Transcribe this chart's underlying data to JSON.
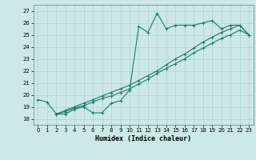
{
  "xlabel": "Humidex (Indice chaleur)",
  "xlim": [
    -0.5,
    23.5
  ],
  "ylim": [
    17.5,
    27.5
  ],
  "yticks": [
    18,
    19,
    20,
    21,
    22,
    23,
    24,
    25,
    26,
    27
  ],
  "xticks": [
    0,
    1,
    2,
    3,
    4,
    5,
    6,
    7,
    8,
    9,
    10,
    11,
    12,
    13,
    14,
    15,
    16,
    17,
    18,
    19,
    20,
    21,
    22,
    23
  ],
  "bg_color": "#cde8e8",
  "line_color": "#1a7a6a",
  "grid_color": "#aad0d0",
  "line1_x": [
    0,
    1,
    2,
    3,
    4,
    5,
    6,
    7,
    8,
    9,
    10,
    11,
    12,
    13,
    14,
    15,
    16,
    17,
    18,
    19,
    20,
    21,
    22,
    23
  ],
  "line1_y": [
    19.6,
    19.4,
    18.4,
    18.4,
    18.8,
    19.0,
    18.5,
    18.5,
    19.3,
    19.5,
    20.4,
    25.7,
    25.2,
    26.8,
    25.5,
    25.8,
    25.8,
    25.8,
    26.0,
    26.2,
    25.5,
    25.8,
    25.8,
    25.0
  ],
  "line2_x": [
    2,
    3,
    4,
    5,
    6,
    7,
    8,
    9,
    10,
    11,
    12,
    13,
    14,
    15,
    16,
    17,
    18,
    19,
    20,
    21,
    22,
    23
  ],
  "line2_y": [
    18.4,
    18.6,
    18.9,
    19.1,
    19.4,
    19.7,
    19.9,
    20.2,
    20.5,
    20.9,
    21.3,
    21.8,
    22.2,
    22.6,
    23.0,
    23.5,
    23.9,
    24.3,
    24.7,
    25.0,
    25.4,
    25.0
  ],
  "line3_x": [
    2,
    3,
    4,
    5,
    6,
    7,
    8,
    9,
    10,
    11,
    12,
    13,
    14,
    15,
    16,
    17,
    18,
    19,
    20,
    21,
    22,
    23
  ],
  "line3_y": [
    18.4,
    18.7,
    19.0,
    19.3,
    19.6,
    19.9,
    20.2,
    20.5,
    20.8,
    21.2,
    21.6,
    22.0,
    22.5,
    23.0,
    23.4,
    23.9,
    24.4,
    24.8,
    25.2,
    25.5,
    25.8,
    25.0
  ]
}
